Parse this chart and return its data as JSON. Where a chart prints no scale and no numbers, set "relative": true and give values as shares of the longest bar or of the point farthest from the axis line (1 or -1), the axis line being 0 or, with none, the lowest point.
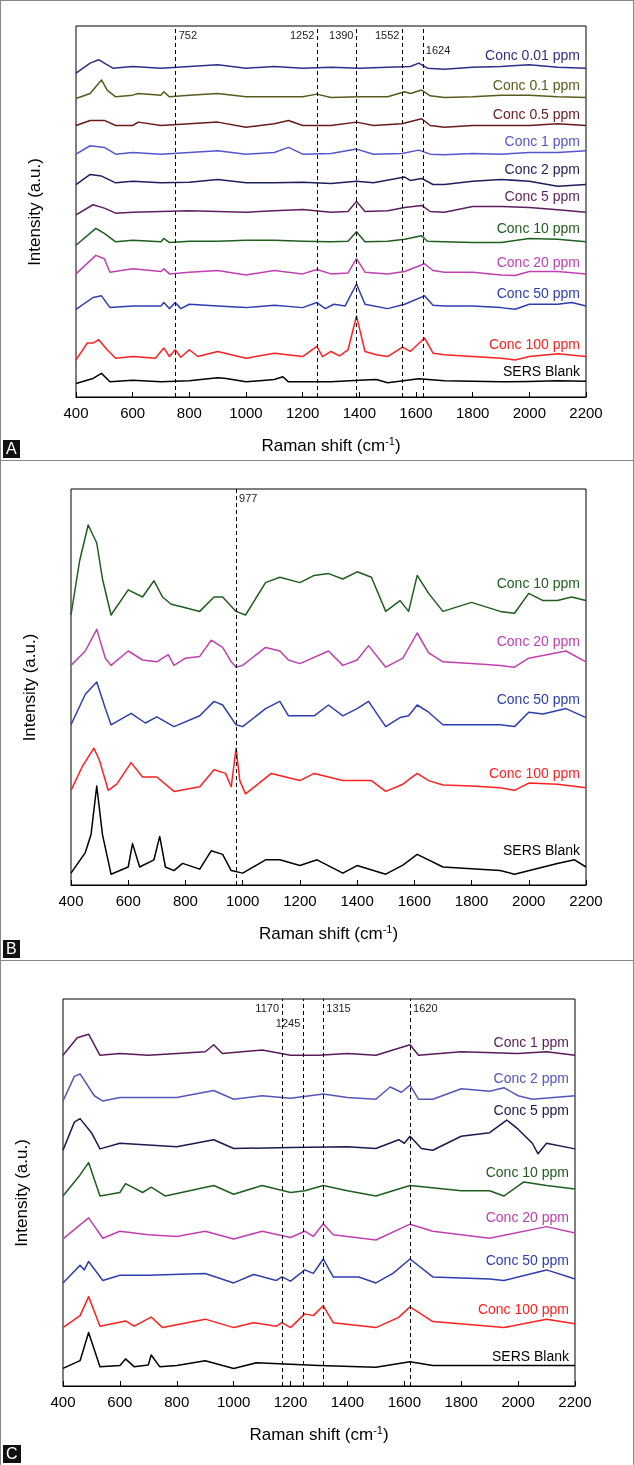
{
  "chart_data": [
    {
      "type": "line",
      "xlabel": "Raman shift (cm$^{-1}$)",
      "ylabel": "Intensity (a.u.)",
      "xlim": [
        400,
        2200
      ],
      "xticks": [
        400,
        600,
        800,
        1000,
        1200,
        1400,
        1600,
        1800,
        2000,
        2200
      ],
      "relative": true,
      "tick_labels": "x",
      "grid": false,
      "annotations": [
        "A"
      ],
      "ref_lines": [
        {
          "axis": "x",
          "value": 752,
          "label": "752",
          "line_style": "dashed",
          "color": "#000000"
        },
        {
          "axis": "x",
          "value": 1252,
          "label": "1252",
          "line_style": "dashed",
          "color": "#000000"
        },
        {
          "axis": "x",
          "value": 1390,
          "label": "1390",
          "line_style": "dashed",
          "color": "#000000"
        },
        {
          "axis": "x",
          "value": 1552,
          "label": "1552",
          "line_style": "dashed",
          "color": "#000000"
        },
        {
          "axis": "x",
          "value": 1624,
          "label": "1624",
          "line_style": "dashed",
          "color": "#000000"
        }
      ],
      "series": [
        {
          "name": "Conc 0.01 ppm",
          "color": "#2e2e8a",
          "x": [
            400,
            450,
            480,
            500,
            530,
            600,
            700,
            800,
            900,
            1000,
            1100,
            1200,
            1300,
            1400,
            1500,
            1580,
            1610,
            1640,
            1700,
            1800,
            1900,
            2000,
            2100,
            2200
          ],
          "values": [
            0.96,
            0.99,
            1.0,
            0.99,
            0.975,
            0.98,
            0.975,
            0.98,
            0.985,
            0.975,
            0.98,
            0.975,
            0.978,
            0.975,
            0.978,
            0.98,
            0.99,
            0.975,
            0.972,
            0.978,
            0.98,
            0.985,
            0.978,
            0.975
          ]
        },
        {
          "name": "Conc 0.1 ppm",
          "color": "#5a5a1e",
          "x": [
            400,
            450,
            490,
            510,
            540,
            600,
            620,
            700,
            710,
            730,
            800,
            900,
            1000,
            1100,
            1200,
            1250,
            1300,
            1400,
            1500,
            1560,
            1580,
            1620,
            1650,
            1700,
            1800,
            1900,
            2000,
            2100,
            2200
          ],
          "values": [
            0.885,
            0.9,
            0.94,
            0.91,
            0.89,
            0.895,
            0.9,
            0.895,
            0.905,
            0.89,
            0.895,
            0.9,
            0.89,
            0.89,
            0.89,
            0.898,
            0.888,
            0.89,
            0.89,
            0.905,
            0.9,
            0.91,
            0.893,
            0.888,
            0.89,
            0.895,
            0.895,
            0.89,
            0.888
          ]
        },
        {
          "name": "Conc 0.5 ppm",
          "color": "#6b1a1a",
          "x": [
            400,
            450,
            500,
            540,
            600,
            620,
            700,
            800,
            900,
            1000,
            1100,
            1150,
            1200,
            1300,
            1390,
            1450,
            1550,
            1620,
            1650,
            1700,
            1800,
            1900,
            2000,
            2100,
            2200
          ],
          "values": [
            0.805,
            0.82,
            0.82,
            0.805,
            0.805,
            0.815,
            0.805,
            0.81,
            0.815,
            0.8,
            0.81,
            0.82,
            0.805,
            0.805,
            0.815,
            0.805,
            0.81,
            0.825,
            0.805,
            0.8,
            0.805,
            0.805,
            0.805,
            0.81,
            0.805
          ]
        },
        {
          "name": "Conc 1 ppm",
          "color": "#5555cc",
          "x": [
            400,
            450,
            500,
            540,
            600,
            700,
            800,
            900,
            1000,
            1100,
            1150,
            1200,
            1300,
            1390,
            1450,
            1550,
            1610,
            1650,
            1700,
            1800,
            1900,
            2000,
            2100,
            2200
          ],
          "values": [
            0.72,
            0.745,
            0.74,
            0.72,
            0.725,
            0.72,
            0.725,
            0.73,
            0.72,
            0.725,
            0.74,
            0.72,
            0.722,
            0.735,
            0.72,
            0.722,
            0.732,
            0.72,
            0.718,
            0.722,
            0.72,
            0.725,
            0.725,
            0.73
          ]
        },
        {
          "name": "Conc 2 ppm",
          "color": "#1f1f5e",
          "x": [
            400,
            450,
            490,
            540,
            600,
            700,
            800,
            900,
            1000,
            1100,
            1200,
            1300,
            1390,
            1450,
            1560,
            1580,
            1620,
            1660,
            1700,
            1800,
            1900,
            2000,
            2100,
            2200
          ],
          "values": [
            0.63,
            0.66,
            0.655,
            0.635,
            0.64,
            0.635,
            0.637,
            0.645,
            0.635,
            0.635,
            0.637,
            0.633,
            0.64,
            0.635,
            0.652,
            0.642,
            0.648,
            0.63,
            0.63,
            0.64,
            0.645,
            0.64,
            0.625,
            0.63
          ]
        },
        {
          "name": "Conc 5 ppm",
          "color": "#5e1f5e",
          "x": [
            400,
            460,
            500,
            540,
            600,
            700,
            800,
            900,
            1000,
            1100,
            1200,
            1300,
            1360,
            1390,
            1420,
            1500,
            1560,
            1620,
            1650,
            1700,
            1800,
            1900,
            2000,
            2100,
            2200
          ],
          "values": [
            0.54,
            0.57,
            0.56,
            0.545,
            0.548,
            0.55,
            0.552,
            0.55,
            0.548,
            0.552,
            0.556,
            0.548,
            0.55,
            0.58,
            0.55,
            0.552,
            0.562,
            0.568,
            0.55,
            0.548,
            0.565,
            0.565,
            0.562,
            0.555,
            0.548
          ]
        },
        {
          "name": "Conc 10 ppm",
          "color": "#1f5e1f",
          "x": [
            400,
            470,
            500,
            540,
            600,
            700,
            710,
            730,
            800,
            900,
            1000,
            1100,
            1200,
            1300,
            1360,
            1390,
            1420,
            1500,
            1560,
            1620,
            1640,
            1700,
            1800,
            1900,
            2000,
            2100,
            2200
          ],
          "values": [
            0.45,
            0.5,
            0.485,
            0.46,
            0.465,
            0.46,
            0.47,
            0.458,
            0.462,
            0.462,
            0.465,
            0.465,
            0.462,
            0.46,
            0.462,
            0.49,
            0.46,
            0.462,
            0.468,
            0.478,
            0.462,
            0.46,
            0.458,
            0.458,
            0.47,
            0.468,
            0.46
          ]
        },
        {
          "name": "Conc 20 ppm",
          "color": "#c040b0",
          "x": [
            400,
            470,
            500,
            520,
            600,
            700,
            710,
            730,
            800,
            900,
            1000,
            1100,
            1200,
            1250,
            1300,
            1360,
            1390,
            1420,
            1500,
            1560,
            1630,
            1660,
            1700,
            1800,
            1900,
            1950,
            2000,
            2100,
            2200
          ],
          "values": [
            0.365,
            0.42,
            0.41,
            0.37,
            0.38,
            0.372,
            0.38,
            0.365,
            0.37,
            0.375,
            0.362,
            0.375,
            0.365,
            0.378,
            0.365,
            0.368,
            0.41,
            0.37,
            0.365,
            0.372,
            0.395,
            0.375,
            0.37,
            0.37,
            0.362,
            0.36,
            0.372,
            0.372,
            0.365
          ]
        },
        {
          "name": "Conc 50 ppm",
          "color": "#2e3eb0",
          "x": [
            400,
            460,
            490,
            520,
            600,
            700,
            710,
            730,
            750,
            770,
            800,
            900,
            1000,
            1100,
            1200,
            1250,
            1280,
            1310,
            1350,
            1390,
            1420,
            1500,
            1560,
            1630,
            1660,
            1700,
            1800,
            1900,
            1950,
            2000,
            2100,
            2150,
            2200
          ],
          "values": [
            0.26,
            0.295,
            0.3,
            0.265,
            0.27,
            0.27,
            0.28,
            0.262,
            0.28,
            0.262,
            0.275,
            0.27,
            0.265,
            0.272,
            0.265,
            0.28,
            0.262,
            0.275,
            0.27,
            0.335,
            0.275,
            0.262,
            0.275,
            0.3,
            0.272,
            0.27,
            0.27,
            0.265,
            0.26,
            0.275,
            0.275,
            0.28,
            0.27
          ]
        },
        {
          "name": "Conc 100 ppm",
          "color": "#ff2020",
          "x": [
            400,
            440,
            460,
            480,
            510,
            540,
            600,
            680,
            710,
            730,
            750,
            770,
            800,
            830,
            900,
            1000,
            1100,
            1200,
            1250,
            1270,
            1300,
            1330,
            1360,
            1390,
            1420,
            1460,
            1500,
            1552,
            1580,
            1630,
            1660,
            1700,
            1800,
            1900,
            1950,
            2000,
            2100,
            2200
          ],
          "values": [
            0.11,
            0.16,
            0.16,
            0.17,
            0.14,
            0.115,
            0.12,
            0.115,
            0.145,
            0.12,
            0.14,
            0.118,
            0.14,
            0.12,
            0.135,
            0.115,
            0.13,
            0.12,
            0.15,
            0.12,
            0.135,
            0.122,
            0.14,
            0.24,
            0.135,
            0.125,
            0.12,
            0.148,
            0.135,
            0.175,
            0.13,
            0.125,
            0.12,
            0.115,
            0.11,
            0.12,
            0.128,
            0.12
          ]
        },
        {
          "name": "SERS Blank",
          "color": "#000000",
          "x": [
            400,
            460,
            490,
            520,
            600,
            700,
            800,
            900,
            930,
            1000,
            1100,
            1130,
            1150,
            1200,
            1300,
            1400,
            1460,
            1500,
            1610,
            1700,
            1800,
            1900,
            2000,
            2100,
            2200
          ],
          "values": [
            0.04,
            0.055,
            0.07,
            0.045,
            0.05,
            0.045,
            0.048,
            0.057,
            0.055,
            0.045,
            0.052,
            0.06,
            0.045,
            0.045,
            0.045,
            0.05,
            0.052,
            0.042,
            0.054,
            0.048,
            0.047,
            0.045,
            0.046,
            0.048,
            0.047
          ]
        }
      ]
    },
    {
      "type": "line",
      "xlabel": "Raman shift (cm$^{-1}$)",
      "ylabel": "Intensity (a.u.)",
      "xlim": [
        400,
        2200
      ],
      "xticks": [
        400,
        600,
        800,
        1000,
        1200,
        1400,
        1600,
        1800,
        2000,
        2200
      ],
      "relative": true,
      "tick_labels": "x",
      "grid": false,
      "annotations": [
        "B"
      ],
      "ref_lines": [
        {
          "axis": "x",
          "value": 977,
          "label": "977",
          "line_style": "dashed",
          "color": "#000000"
        }
      ],
      "series": [
        {
          "name": "Conc 10 ppm",
          "color": "#1f5e1f",
          "x": [
            400,
            430,
            460,
            490,
            510,
            540,
            600,
            650,
            690,
            720,
            750,
            800,
            850,
            900,
            930,
            977,
            1010,
            1080,
            1130,
            1200,
            1250,
            1300,
            1350,
            1400,
            1450,
            1500,
            1550,
            1580,
            1610,
            1650,
            1700,
            1800,
            1900,
            1950,
            2000,
            2050,
            2100,
            2150,
            2200
          ],
          "values": [
            0.75,
            0.9,
            1.0,
            0.95,
            0.85,
            0.75,
            0.82,
            0.8,
            0.845,
            0.8,
            0.78,
            0.77,
            0.76,
            0.8,
            0.8,
            0.76,
            0.75,
            0.84,
            0.855,
            0.84,
            0.86,
            0.865,
            0.85,
            0.87,
            0.855,
            0.76,
            0.79,
            0.76,
            0.86,
            0.81,
            0.76,
            0.785,
            0.76,
            0.755,
            0.81,
            0.79,
            0.79,
            0.8,
            0.79
          ]
        },
        {
          "name": "Conc 20 ppm",
          "color": "#c040b0",
          "x": [
            400,
            450,
            490,
            520,
            540,
            600,
            650,
            700,
            740,
            760,
            800,
            850,
            890,
            930,
            960,
            977,
            1000,
            1080,
            1130,
            1160,
            1200,
            1300,
            1350,
            1400,
            1440,
            1500,
            1560,
            1610,
            1650,
            1700,
            1800,
            1900,
            1950,
            2000,
            2130,
            2200
          ],
          "values": [
            0.61,
            0.65,
            0.71,
            0.63,
            0.61,
            0.65,
            0.625,
            0.62,
            0.64,
            0.61,
            0.63,
            0.635,
            0.68,
            0.66,
            0.62,
            0.605,
            0.61,
            0.66,
            0.65,
            0.625,
            0.615,
            0.65,
            0.61,
            0.625,
            0.665,
            0.605,
            0.63,
            0.7,
            0.645,
            0.62,
            0.615,
            0.61,
            0.605,
            0.63,
            0.65,
            0.62
          ]
        },
        {
          "name": "Conc 50 ppm",
          "color": "#2e3eb0",
          "x": [
            400,
            450,
            490,
            520,
            540,
            610,
            660,
            700,
            760,
            850,
            900,
            930,
            977,
            1000,
            1080,
            1130,
            1160,
            1250,
            1300,
            1350,
            1400,
            1440,
            1500,
            1550,
            1580,
            1610,
            1650,
            1700,
            1800,
            1900,
            1950,
            2000,
            2050,
            2130,
            2200
          ],
          "values": [
            0.445,
            0.53,
            0.564,
            0.49,
            0.445,
            0.477,
            0.45,
            0.467,
            0.44,
            0.47,
            0.51,
            0.5,
            0.445,
            0.44,
            0.49,
            0.51,
            0.47,
            0.47,
            0.5,
            0.47,
            0.49,
            0.51,
            0.44,
            0.465,
            0.47,
            0.5,
            0.48,
            0.445,
            0.445,
            0.445,
            0.44,
            0.48,
            0.475,
            0.49,
            0.465
          ]
        },
        {
          "name": "Conc 100 ppm",
          "color": "#ff2020",
          "x": [
            400,
            440,
            480,
            500,
            530,
            560,
            610,
            650,
            700,
            760,
            850,
            900,
            940,
            960,
            977,
            990,
            1010,
            1100,
            1200,
            1250,
            1350,
            1450,
            1500,
            1560,
            1610,
            1650,
            1700,
            1800,
            1900,
            1950,
            2000,
            2100,
            2200
          ],
          "values": [
            0.263,
            0.33,
            0.38,
            0.345,
            0.263,
            0.28,
            0.34,
            0.3,
            0.3,
            0.26,
            0.273,
            0.32,
            0.31,
            0.273,
            0.38,
            0.29,
            0.253,
            0.31,
            0.29,
            0.31,
            0.29,
            0.29,
            0.26,
            0.28,
            0.31,
            0.29,
            0.278,
            0.275,
            0.27,
            0.263,
            0.283,
            0.28,
            0.27
          ]
        },
        {
          "name": "SERS Blank",
          "color": "#000000",
          "x": [
            400,
            450,
            470,
            490,
            510,
            540,
            600,
            615,
            640,
            690,
            710,
            730,
            760,
            790,
            850,
            890,
            930,
            960,
            1000,
            1080,
            1130,
            1200,
            1260,
            1350,
            1400,
            1500,
            1560,
            1610,
            1700,
            1800,
            1900,
            1950,
            2100,
            2160,
            2200
          ],
          "values": [
            0.033,
            0.09,
            0.14,
            0.275,
            0.14,
            0.03,
            0.05,
            0.115,
            0.05,
            0.07,
            0.135,
            0.05,
            0.04,
            0.06,
            0.044,
            0.095,
            0.085,
            0.04,
            0.033,
            0.07,
            0.07,
            0.054,
            0.07,
            0.033,
            0.054,
            0.03,
            0.055,
            0.085,
            0.05,
            0.045,
            0.04,
            0.03,
            0.06,
            0.07,
            0.05
          ]
        }
      ]
    },
    {
      "type": "line",
      "xlabel": "Raman shift (cm$^{-1}$)",
      "ylabel": "Intensity (a.u.)",
      "xlim": [
        400,
        2200
      ],
      "xticks": [
        400,
        600,
        800,
        1000,
        1200,
        1400,
        1600,
        1800,
        2000,
        2200
      ],
      "relative": true,
      "tick_labels": "x",
      "grid": false,
      "annotations": [
        "C"
      ],
      "ref_lines": [
        {
          "axis": "x",
          "value": 1170,
          "label": "1170",
          "line_style": "dashed",
          "color": "#000000"
        },
        {
          "axis": "x",
          "value": 1245,
          "label": "1245",
          "line_style": "dashed",
          "color": "#000000"
        },
        {
          "axis": "x",
          "value": 1315,
          "label": "1315",
          "line_style": "dashed",
          "color": "#000000"
        },
        {
          "axis": "x",
          "value": 1620,
          "label": "1620",
          "line_style": "dashed",
          "color": "#000000"
        }
      ],
      "series": [
        {
          "name": "Conc 1 ppm",
          "color": "#5a1a5a",
          "x": [
            400,
            450,
            490,
            530,
            600,
            700,
            800,
            900,
            930,
            960,
            1100,
            1200,
            1300,
            1400,
            1500,
            1620,
            1650,
            1800,
            2000,
            2100,
            2200
          ],
          "values": [
            0.94,
            0.99,
            1.0,
            0.94,
            0.945,
            0.94,
            0.945,
            0.95,
            0.97,
            0.945,
            0.955,
            0.94,
            0.94,
            0.945,
            0.94,
            0.97,
            0.94,
            0.95,
            0.945,
            0.95,
            0.94
          ]
        },
        {
          "name": "Conc 2 ppm",
          "color": "#5555bb",
          "x": [
            400,
            440,
            460,
            510,
            540,
            600,
            800,
            930,
            1000,
            1100,
            1200,
            1315,
            1400,
            1500,
            1550,
            1590,
            1620,
            1650,
            1700,
            1800,
            1900,
            1950,
            2000,
            2050,
            2200
          ],
          "values": [
            0.81,
            0.88,
            0.887,
            0.825,
            0.81,
            0.82,
            0.82,
            0.84,
            0.815,
            0.825,
            0.818,
            0.83,
            0.82,
            0.815,
            0.85,
            0.835,
            0.855,
            0.815,
            0.815,
            0.845,
            0.838,
            0.848,
            0.825,
            0.815,
            0.825
          ]
        },
        {
          "name": "Conc 5 ppm",
          "color": "#1a1a50",
          "x": [
            400,
            440,
            460,
            500,
            530,
            600,
            800,
            930,
            1000,
            1200,
            1400,
            1500,
            1580,
            1600,
            1620,
            1660,
            1700,
            1800,
            1900,
            1960,
            2000,
            2050,
            2070,
            2100,
            2200
          ],
          "values": [
            0.67,
            0.75,
            0.76,
            0.72,
            0.674,
            0.69,
            0.68,
            0.7,
            0.675,
            0.678,
            0.68,
            0.675,
            0.7,
            0.69,
            0.71,
            0.675,
            0.67,
            0.71,
            0.72,
            0.756,
            0.73,
            0.69,
            0.66,
            0.69,
            0.674
          ]
        },
        {
          "name": "Conc 10 ppm",
          "color": "#1f5e1f",
          "x": [
            400,
            460,
            490,
            530,
            600,
            620,
            680,
            710,
            760,
            930,
            1000,
            1100,
            1200,
            1250,
            1315,
            1400,
            1500,
            1620,
            1800,
            1900,
            1950,
            2020,
            2100,
            2200
          ],
          "values": [
            0.54,
            0.6,
            0.635,
            0.54,
            0.55,
            0.575,
            0.55,
            0.565,
            0.54,
            0.57,
            0.545,
            0.57,
            0.55,
            0.555,
            0.57,
            0.555,
            0.54,
            0.57,
            0.555,
            0.555,
            0.54,
            0.58,
            0.57,
            0.56
          ]
        },
        {
          "name": "Conc 20 ppm",
          "color": "#c040b0",
          "x": [
            400,
            490,
            540,
            600,
            700,
            800,
            900,
            1000,
            1100,
            1200,
            1250,
            1280,
            1315,
            1350,
            1500,
            1620,
            1700,
            1900,
            2100,
            2200
          ],
          "values": [
            0.418,
            0.478,
            0.42,
            0.44,
            0.43,
            0.425,
            0.44,
            0.418,
            0.44,
            0.422,
            0.44,
            0.425,
            0.461,
            0.43,
            0.415,
            0.46,
            0.44,
            0.42,
            0.453,
            0.435
          ]
        },
        {
          "name": "Conc 50 ppm",
          "color": "#2e3eb0",
          "x": [
            400,
            460,
            475,
            490,
            540,
            600,
            700,
            900,
            1000,
            1070,
            1150,
            1170,
            1200,
            1250,
            1280,
            1315,
            1350,
            1440,
            1500,
            1560,
            1620,
            1700,
            1900,
            1950,
            2100,
            2200
          ],
          "values": [
            0.293,
            0.343,
            0.33,
            0.354,
            0.3,
            0.315,
            0.315,
            0.32,
            0.293,
            0.317,
            0.3,
            0.31,
            0.298,
            0.33,
            0.32,
            0.361,
            0.31,
            0.31,
            0.293,
            0.32,
            0.361,
            0.31,
            0.304,
            0.3,
            0.33,
            0.304
          ]
        },
        {
          "name": "Conc 100 ppm",
          "color": "#ff2020",
          "x": [
            400,
            460,
            490,
            530,
            620,
            650,
            710,
            750,
            900,
            1000,
            1070,
            1150,
            1170,
            1200,
            1250,
            1280,
            1315,
            1350,
            1500,
            1580,
            1620,
            1700,
            1900,
            1950,
            2100,
            2200
          ],
          "values": [
            0.166,
            0.2,
            0.254,
            0.17,
            0.185,
            0.17,
            0.196,
            0.166,
            0.19,
            0.166,
            0.18,
            0.17,
            0.18,
            0.166,
            0.205,
            0.2,
            0.228,
            0.18,
            0.166,
            0.195,
            0.225,
            0.183,
            0.17,
            0.166,
            0.19,
            0.177
          ]
        },
        {
          "name": "SERS Blank",
          "color": "#000000",
          "x": [
            400,
            460,
            490,
            530,
            600,
            620,
            650,
            700,
            710,
            740,
            800,
            900,
            1000,
            1080,
            1300,
            1500,
            1620,
            1700,
            2000,
            2200
          ],
          "values": [
            0.05,
            0.072,
            0.152,
            0.055,
            0.058,
            0.077,
            0.055,
            0.06,
            0.088,
            0.055,
            0.058,
            0.072,
            0.05,
            0.066,
            0.058,
            0.053,
            0.069,
            0.058,
            0.058,
            0.058
          ]
        }
      ]
    }
  ]
}
